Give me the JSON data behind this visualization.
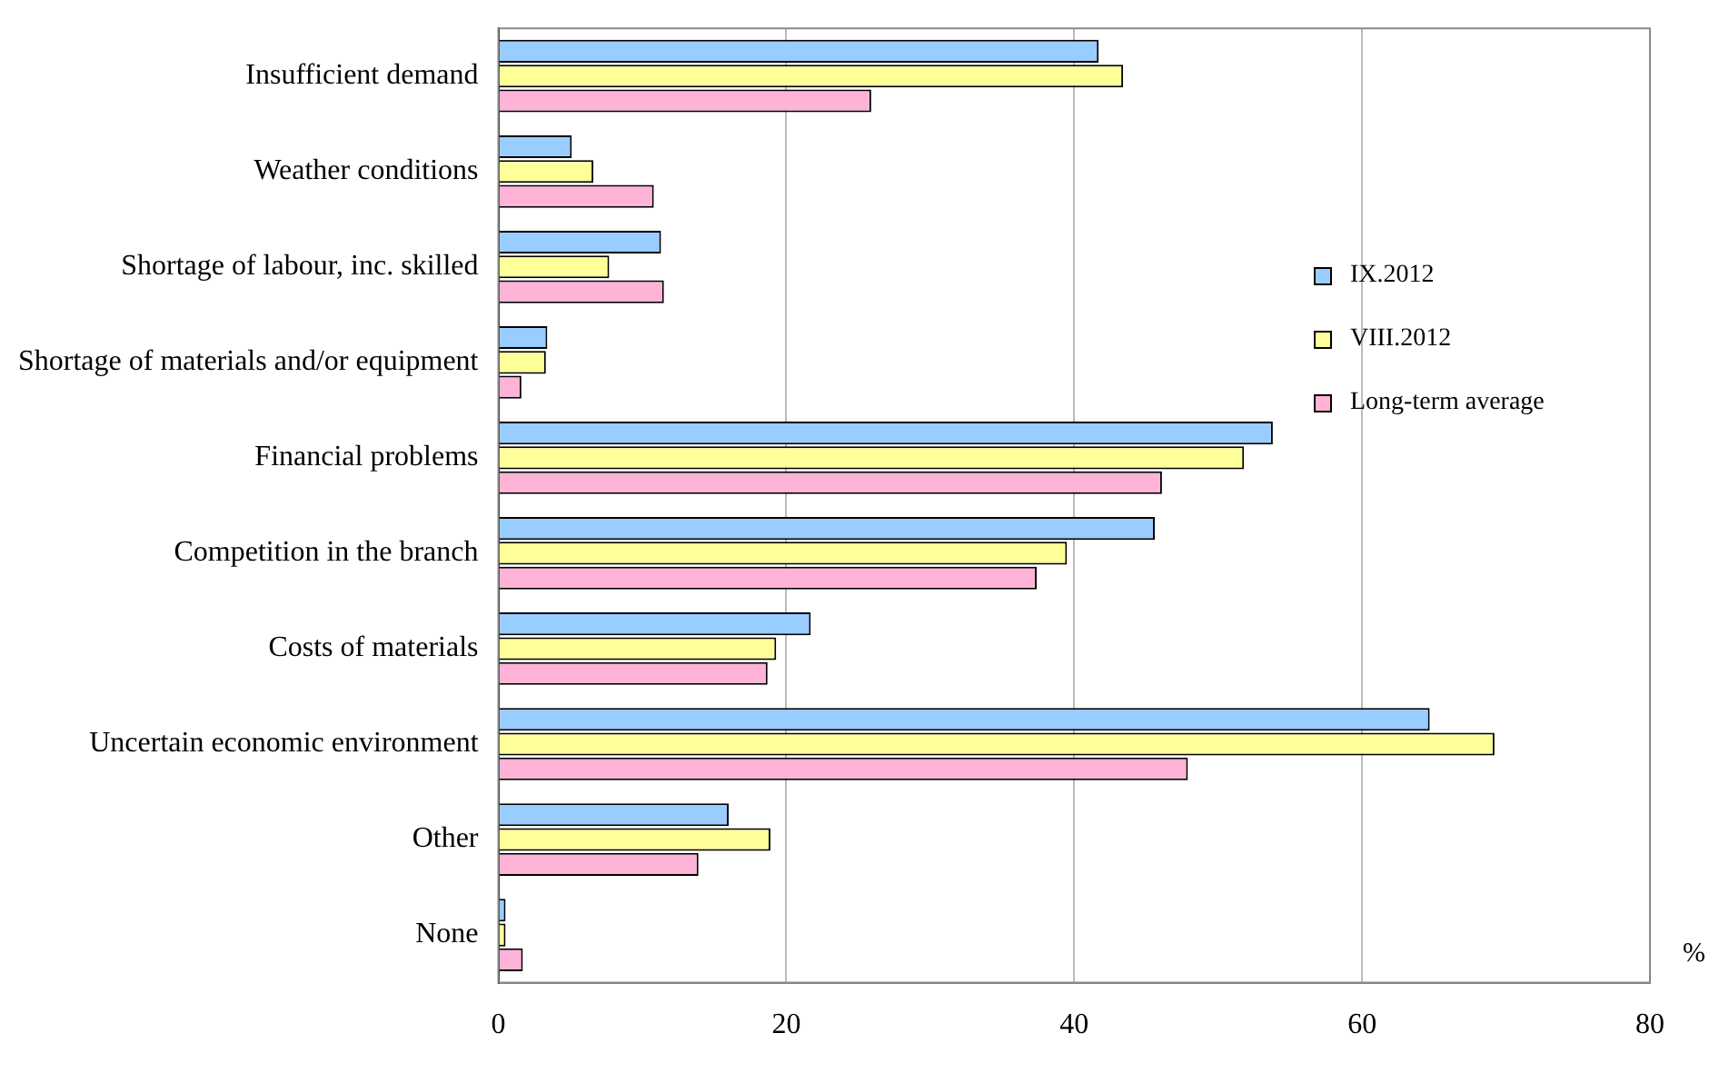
{
  "chart_data": {
    "type": "bar",
    "orientation": "horizontal",
    "xlabel": "%",
    "categories": [
      "Insufficient demand",
      "Weather conditions",
      "Shortage of labour, inc. skilled",
      "Shortage of materials and/or equipment",
      "Financial problems",
      "Competition in the branch",
      "Costs of materials",
      "Uncertain economic environment",
      "Other",
      "None"
    ],
    "series": [
      {
        "name": "IX.2012",
        "color": "#99ccff",
        "values": [
          41.7,
          5.1,
          11.3,
          3.4,
          53.8,
          45.6,
          21.7,
          64.7,
          16.0,
          0.5
        ]
      },
      {
        "name": "VIII.2012",
        "color": "#ffff99",
        "values": [
          43.4,
          6.6,
          7.7,
          3.3,
          51.8,
          39.5,
          19.3,
          69.2,
          18.9,
          0.5
        ]
      },
      {
        "name": "Long-term average",
        "color": "#ffb3d6",
        "values": [
          25.9,
          10.8,
          11.5,
          1.6,
          46.1,
          37.4,
          18.7,
          47.9,
          13.9,
          1.7
        ]
      }
    ],
    "xlim": [
      0,
      80
    ],
    "xticks": [
      0,
      20,
      40,
      60,
      80
    ],
    "grid": "x",
    "legend": "top right"
  }
}
